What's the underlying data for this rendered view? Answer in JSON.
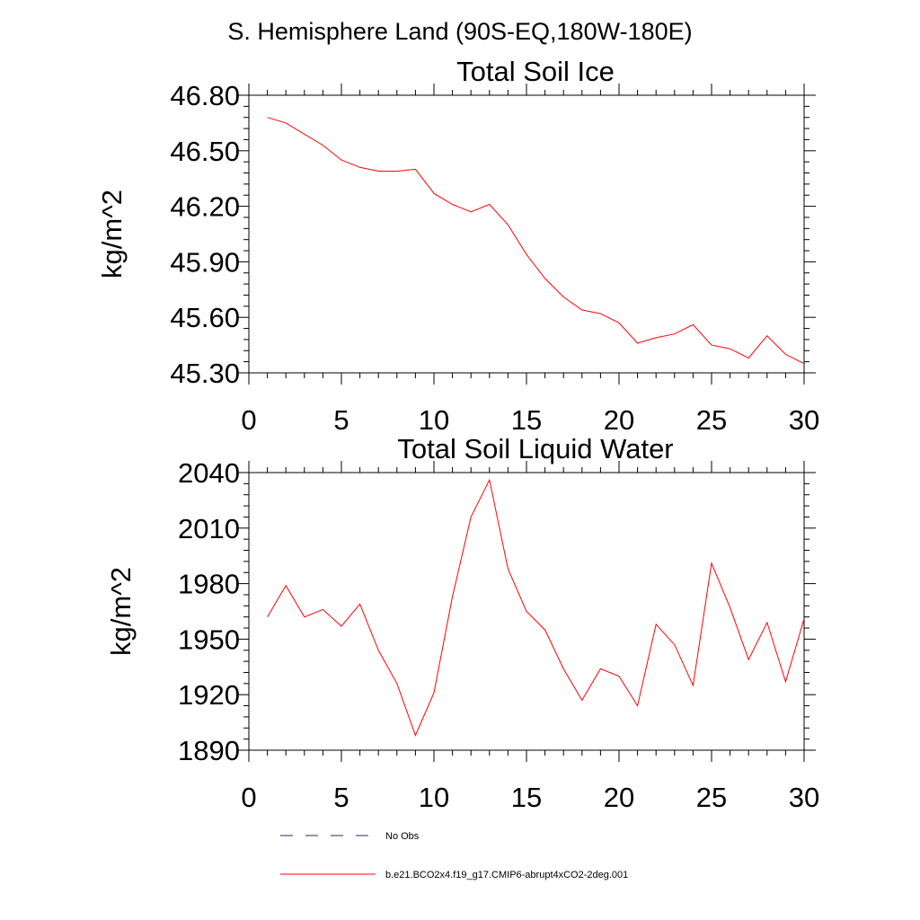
{
  "figure_title": "S. Hemisphere Land (90S-EQ,180W-180E)",
  "chart_data": [
    {
      "type": "line",
      "title": "Total Soil Ice",
      "xlabel": "",
      "ylabel": "kg/m^2",
      "xlim": [
        0,
        30
      ],
      "ylim": [
        45.3,
        46.8
      ],
      "xticks": [
        "0",
        "5",
        "10",
        "15",
        "20",
        "25",
        "30"
      ],
      "yticks": [
        "45.30",
        "45.60",
        "45.90",
        "46.20",
        "46.50",
        "46.80"
      ],
      "x": [
        1,
        2,
        3,
        4,
        5,
        6,
        7,
        8,
        9,
        10,
        11,
        12,
        13,
        14,
        15,
        16,
        17,
        18,
        19,
        20,
        21,
        22,
        23,
        24,
        25,
        26,
        27,
        28,
        29,
        30
      ],
      "series": [
        {
          "name": "b.e21.BCO2x4.f19_g17.CMIP6-abrupt4xCO2-2deg.001",
          "color": "#ff0000",
          "values": [
            46.68,
            46.65,
            46.59,
            46.53,
            46.45,
            46.41,
            46.39,
            46.39,
            46.4,
            46.27,
            46.21,
            46.17,
            46.21,
            46.1,
            45.94,
            45.81,
            45.71,
            45.64,
            45.62,
            45.57,
            45.46,
            45.49,
            45.51,
            45.56,
            45.45,
            45.43,
            45.38,
            45.5,
            45.4,
            45.35
          ]
        }
      ]
    },
    {
      "type": "line",
      "title": "Total Soil Liquid Water",
      "xlabel": "",
      "ylabel": "kg/m^2",
      "xlim": [
        0,
        30
      ],
      "ylim": [
        1890,
        2040
      ],
      "xticks": [
        "0",
        "5",
        "10",
        "15",
        "20",
        "25",
        "30"
      ],
      "yticks": [
        "1890",
        "1920",
        "1950",
        "1980",
        "2010",
        "2040"
      ],
      "x": [
        1,
        2,
        3,
        4,
        5,
        6,
        7,
        8,
        9,
        10,
        11,
        12,
        13,
        14,
        15,
        16,
        17,
        18,
        19,
        20,
        21,
        22,
        23,
        24,
        25,
        26,
        27,
        28,
        29,
        30
      ],
      "series": [
        {
          "name": "b.e21.BCO2x4.f19_g17.CMIP6-abrupt4xCO2-2deg.001",
          "color": "#ff0000",
          "values": [
            1962,
            1979,
            1962,
            1966,
            1957,
            1969,
            1944,
            1926,
            1898,
            1921,
            1973,
            2016,
            2036,
            1988,
            1965,
            1955,
            1934,
            1917,
            1934,
            1930,
            1914,
            1958,
            1947,
            1925,
            1991,
            1967,
            1939,
            1959,
            1927,
            1961
          ]
        }
      ]
    }
  ],
  "legend": [
    {
      "label": "No Obs",
      "style": "dashed",
      "color": "#2a2a6a"
    },
    {
      "label": "b.e21.BCO2x4.f19_g17.CMIP6-abrupt4xCO2-2deg.001",
      "style": "solid",
      "color": "#ff0000"
    }
  ]
}
